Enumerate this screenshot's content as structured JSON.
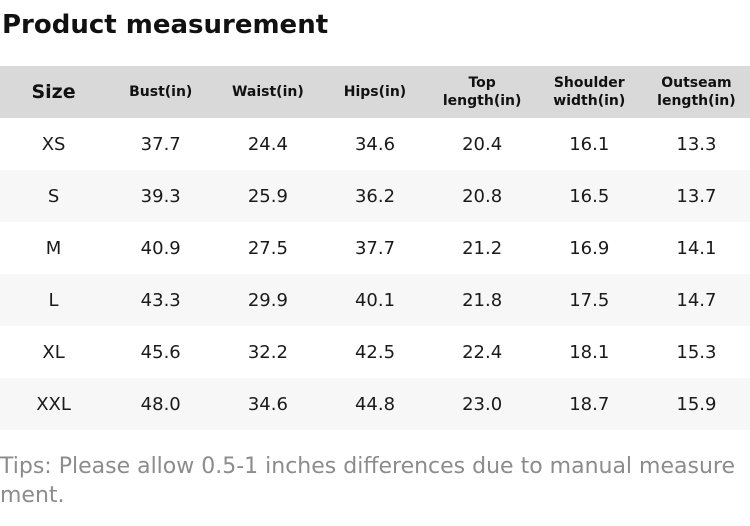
{
  "title": "Product measurement",
  "table": {
    "columns": [
      "Size",
      "Bust(in)",
      "Waist(in)",
      "Hips(in)",
      "Top length(in)",
      "Shoulder width(in)",
      "Outseam length(in)"
    ],
    "rows": [
      [
        "XS",
        "37.7",
        "24.4",
        "34.6",
        "20.4",
        "16.1",
        "13.3"
      ],
      [
        "S",
        "39.3",
        "25.9",
        "36.2",
        "20.8",
        "16.5",
        "13.7"
      ],
      [
        "M",
        "40.9",
        "27.5",
        "37.7",
        "21.2",
        "16.9",
        "14.1"
      ],
      [
        "L",
        "43.3",
        "29.9",
        "40.1",
        "21.8",
        "17.5",
        "14.7"
      ],
      [
        "XL",
        "45.6",
        "32.2",
        "42.5",
        "22.4",
        "18.1",
        "15.3"
      ],
      [
        "XXL",
        "48.0",
        "34.6",
        "44.8",
        "23.0",
        "18.7",
        "15.9"
      ]
    ]
  },
  "tips": "Tips: Please allow 0.5-1 inches differences due to manual measurement.",
  "colors": {
    "header_bg": "#d9d9d9",
    "stripe_bg": "#f7f7f7",
    "body_text": "#1a1a1a",
    "tips_text": "#8c8c8c"
  }
}
